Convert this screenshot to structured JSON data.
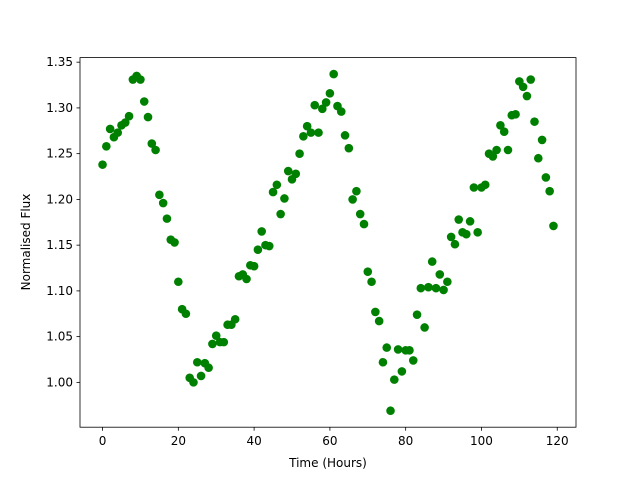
{
  "chart_data": {
    "type": "scatter",
    "xlabel": "Time (Hours)",
    "ylabel": "Normalised Flux",
    "color": "#008000",
    "x": [
      0,
      1,
      2,
      3,
      4,
      5,
      6,
      7,
      8,
      9,
      10,
      11,
      12,
      13,
      14,
      15,
      16,
      17,
      18,
      19,
      20,
      21,
      22,
      23,
      24,
      25,
      26,
      27,
      28,
      29,
      30,
      31,
      32,
      33,
      34,
      35,
      36,
      37,
      38,
      39,
      40,
      41,
      42,
      43,
      44,
      45,
      46,
      47,
      48,
      49,
      50,
      51,
      52,
      53,
      54,
      55,
      56,
      57,
      58,
      59,
      60,
      61,
      62,
      63,
      64,
      65,
      66,
      67,
      68,
      69,
      70,
      71,
      72,
      73,
      74,
      75,
      76,
      77,
      78,
      79,
      80,
      81,
      82,
      83,
      84,
      85,
      86,
      87,
      88,
      89,
      90,
      91,
      92,
      93,
      94,
      95,
      96,
      97,
      98,
      99,
      100,
      101,
      102,
      103,
      104,
      105,
      106,
      107,
      108,
      109,
      110,
      111,
      112,
      113,
      114,
      115,
      116,
      117,
      118,
      119
    ],
    "y": [
      1.238,
      1.258,
      1.277,
      1.268,
      1.273,
      1.281,
      1.284,
      1.291,
      1.331,
      1.335,
      1.331,
      1.307,
      1.29,
      1.261,
      1.254,
      1.205,
      1.196,
      1.179,
      1.156,
      1.153,
      1.11,
      1.08,
      1.075,
      1.005,
      1.0,
      1.022,
      1.007,
      1.021,
      1.016,
      1.042,
      1.051,
      1.044,
      1.044,
      1.063,
      1.063,
      1.069,
      1.116,
      1.118,
      1.113,
      1.128,
      1.127,
      1.145,
      1.165,
      1.15,
      1.149,
      1.208,
      1.216,
      1.184,
      1.201,
      1.231,
      1.222,
      1.228,
      1.25,
      1.269,
      1.28,
      1.273,
      1.303,
      1.273,
      1.299,
      1.306,
      1.316,
      1.337,
      1.302,
      1.296,
      1.27,
      1.256,
      1.2,
      1.209,
      1.184,
      1.173,
      1.121,
      1.11,
      1.077,
      1.067,
      1.022,
      1.038,
      0.969,
      1.003,
      1.036,
      1.012,
      1.035,
      1.035,
      1.024,
      1.074,
      1.103,
      1.06,
      1.104,
      1.132,
      1.103,
      1.118,
      1.101,
      1.11,
      1.159,
      1.151,
      1.178,
      1.164,
      1.162,
      1.176,
      1.213,
      1.164,
      1.213,
      1.216,
      1.25,
      1.247,
      1.254,
      1.281,
      1.274,
      1.254,
      1.292,
      1.293,
      1.329,
      1.323,
      1.313,
      1.331,
      1.285,
      1.245,
      1.265,
      1.224,
      1.209,
      1.171
    ],
    "xlim": [
      -5.95,
      124.95
    ],
    "ylim": [
      0.951,
      1.355
    ],
    "xticks": [
      0,
      20,
      40,
      60,
      80,
      100,
      120
    ],
    "yticks": [
      {
        "value": 1,
        "label": "1.00"
      },
      1.05,
      {
        "value": 1.1,
        "label": "1.10"
      },
      1.15,
      {
        "value": 1.2,
        "label": "1.20"
      },
      1.25,
      {
        "value": 1.3,
        "label": "1.30"
      },
      1.35
    ]
  }
}
